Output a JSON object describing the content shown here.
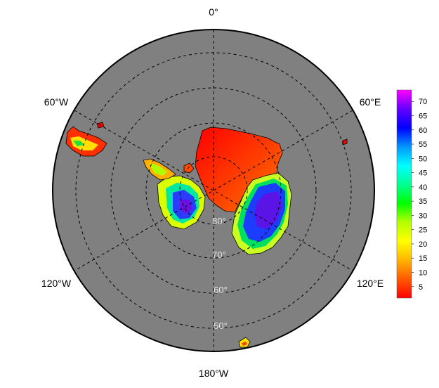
{
  "map": {
    "projection": "south-polar-stereographic",
    "background_color": "#808080",
    "graticule_style": "dashed",
    "longitude_labels": {
      "top": "0°",
      "upper_left": "60°W",
      "upper_right": "60°E",
      "lower_left": "120°W",
      "lower_right": "120°E",
      "bottom": "180°W"
    },
    "latitude_labels": [
      "80°",
      "70°",
      "60°",
      "50°"
    ]
  },
  "colorbar": {
    "ticks": [
      "5",
      "10",
      "15",
      "20",
      "25",
      "30",
      "35",
      "40",
      "45",
      "50",
      "55",
      "60",
      "65",
      "70"
    ],
    "min": 1,
    "max": 74,
    "colors": [
      "#ff0000",
      "#ff5a00",
      "#ffb400",
      "#ffff00",
      "#b4ff00",
      "#00ff00",
      "#00ff90",
      "#00ffff",
      "#0096ff",
      "#0000ff",
      "#6400ff",
      "#ff00ff"
    ]
  }
}
